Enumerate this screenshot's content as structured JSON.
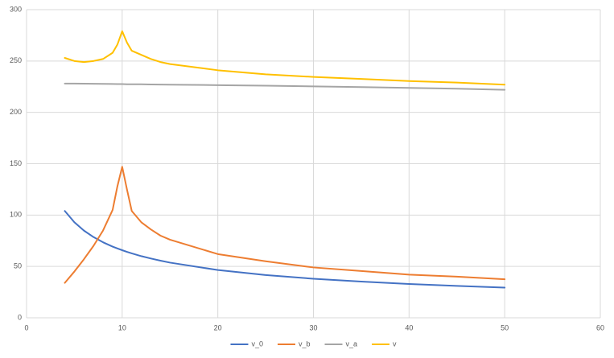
{
  "chart_data": {
    "type": "line",
    "x": [
      4,
      5,
      6,
      7,
      8,
      9,
      9.5,
      10,
      10.5,
      11,
      12,
      13,
      14,
      15,
      20,
      25,
      30,
      35,
      40,
      45,
      50
    ],
    "series": [
      {
        "name": "v_0",
        "color": "#4472c4",
        "values": [
          104,
          93,
          84.9,
          78.6,
          73.5,
          69.3,
          67.5,
          65.8,
          64.2,
          62.7,
          60,
          57.7,
          55.6,
          53.7,
          46.5,
          41.6,
          38,
          35.2,
          32.9,
          31,
          29.4
        ]
      },
      {
        "name": "v_b",
        "color": "#ed7d31",
        "values": [
          34,
          45,
          57,
          70,
          85,
          105,
          128,
          147,
          125,
          104,
          93,
          86,
          80,
          76,
          62,
          55,
          49,
          45.5,
          42,
          40,
          37.5
        ]
      },
      {
        "name": "v_a",
        "color": "#a5a5a5",
        "values": [
          228,
          228,
          227.9,
          227.8,
          227.7,
          227.6,
          227.5,
          227.5,
          227.4,
          227.4,
          227.3,
          227.2,
          227.1,
          227,
          226.5,
          226,
          225.3,
          224.6,
          223.8,
          223,
          222
        ]
      },
      {
        "name": "v",
        "color": "#ffc000",
        "values": [
          253,
          250,
          249,
          250,
          252,
          258,
          266,
          279,
          268,
          260,
          256,
          252,
          249,
          247,
          241,
          237,
          234.5,
          232.5,
          230.5,
          229,
          227
        ]
      }
    ],
    "xlim": [
      0,
      60
    ],
    "xticks": [
      0,
      10,
      20,
      30,
      40,
      50,
      60
    ],
    "ylim": [
      0,
      300
    ],
    "yticks": [
      0,
      50,
      100,
      150,
      200,
      250,
      300
    ],
    "grid": true,
    "legend": "bottom"
  }
}
